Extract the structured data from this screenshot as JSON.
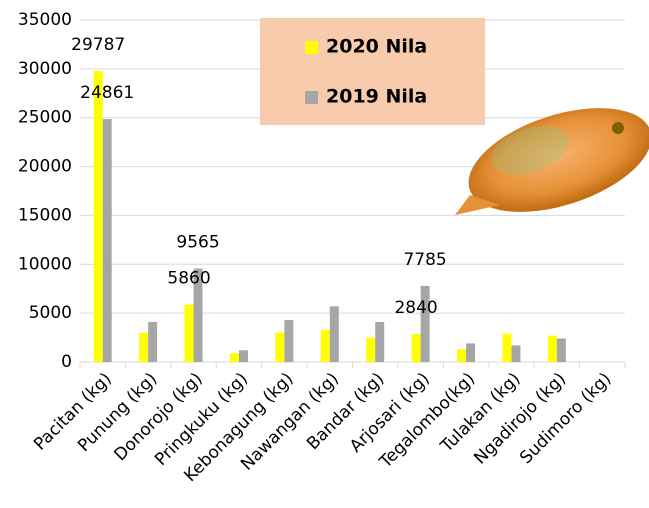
{
  "chart_data": {
    "type": "bar",
    "categories": [
      "Pacitan (kg)",
      "Punung (kg)",
      "Donorojo (kg)",
      "Pringkuku (kg)",
      "Kebonagung (kg)",
      "Nawangan (kg)",
      "Bandar (kg)",
      "Arjosari (kg)",
      "Tegalombo(kg)",
      "Tulakan (kg)",
      "Ngadirojo (kg)",
      "Sudimoro (kg)"
    ],
    "series": [
      {
        "name": "2020 Nila",
        "color": "#ffff00",
        "values": [
          29787,
          3000,
          5860,
          900,
          3000,
          3300,
          2500,
          2840,
          1300,
          2900,
          2700,
          0
        ],
        "value_labels": [
          "29787",
          null,
          "5860",
          null,
          null,
          null,
          null,
          "2840",
          null,
          null,
          null,
          null
        ]
      },
      {
        "name": "2019 Nila",
        "color": "#a6a6a6",
        "values": [
          24861,
          4100,
          9565,
          1200,
          4300,
          5700,
          4100,
          7785,
          1900,
          1700,
          2400,
          0
        ],
        "value_labels": [
          "24861",
          null,
          "9565",
          null,
          null,
          null,
          null,
          "7785",
          null,
          null,
          null,
          null
        ]
      }
    ],
    "ylim": [
      0,
      35000
    ],
    "yticks": [
      0,
      5000,
      10000,
      15000,
      20000,
      25000,
      30000,
      35000
    ],
    "grid": true
  }
}
